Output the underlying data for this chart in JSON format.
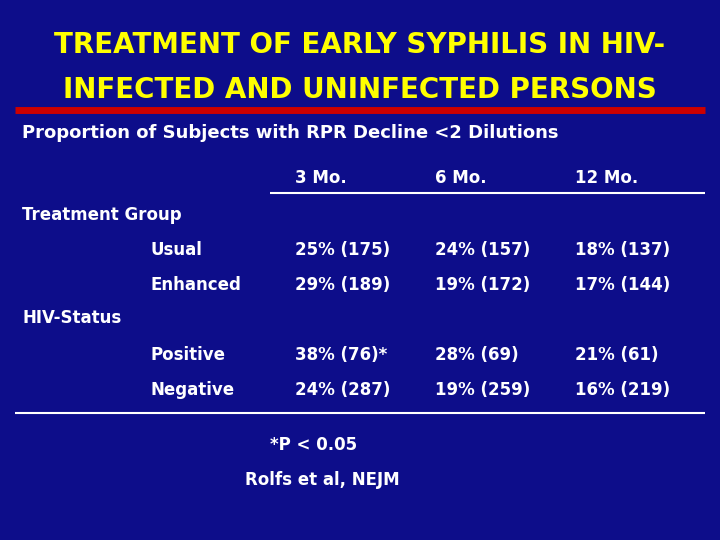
{
  "title_line1": "TREATMENT OF EARLY SYPHILIS IN HIV-",
  "title_line2": "INFECTED AND UNINFECTED PERSONS",
  "subtitle": "Proportion of Subjects with RPR Decline <2 Dilutions",
  "col_headers": [
    "3 Mo.",
    "6 Mo.",
    "12 Mo."
  ],
  "section1_header": "Treatment Group",
  "section2_header": "HIV-Status",
  "rows": [
    {
      "label": "Usual",
      "vals": [
        "25% (175)",
        "24% (157)",
        "18% (137)"
      ]
    },
    {
      "label": "Enhanced",
      "vals": [
        "29% (189)",
        "19% (172)",
        "17% (144)"
      ]
    },
    {
      "label": "Positive",
      "vals": [
        "38% (76)*",
        "28% (69)",
        "21% (61)"
      ]
    },
    {
      "label": "Negative",
      "vals": [
        "24% (287)",
        "19% (259)",
        "16% (219)"
      ]
    }
  ],
  "footnote1": "*P < 0.05",
  "footnote2": "Rolfs et al, NEJM",
  "bg_color": "#0d0d8a",
  "title_color": "#ffff00",
  "red_line_color": "#cc0000",
  "subtitle_color": "#ffffff",
  "header_color": "#ffffff",
  "section_color": "#ffffff",
  "data_color": "#ffffff",
  "footnote_color": "#ffffff",
  "title_fontsize": 20,
  "subtitle_fontsize": 13,
  "table_fontsize": 12
}
